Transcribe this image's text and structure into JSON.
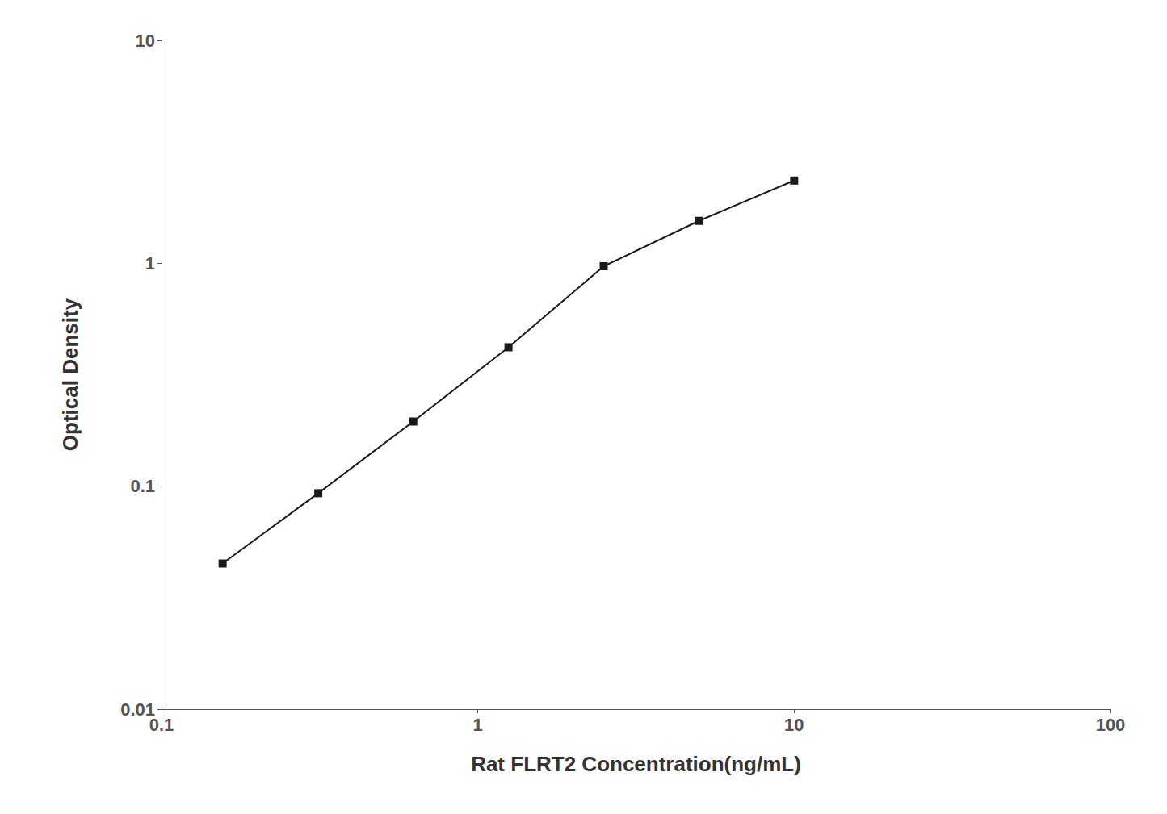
{
  "chart_data": {
    "type": "line",
    "x": [
      0.156,
      0.313,
      0.625,
      1.25,
      2.5,
      5.0,
      10.0
    ],
    "values": [
      0.045,
      0.093,
      0.195,
      0.42,
      0.97,
      1.55,
      2.35
    ],
    "xlabel": "Rat FLRT2 Concentration(ng/mL)",
    "ylabel": "Optical Density",
    "xlim": [
      0.1,
      100
    ],
    "ylim": [
      0.01,
      10
    ],
    "xticks": [
      0.1,
      1,
      10,
      100
    ],
    "yticks": [
      0.01,
      0.1,
      1,
      10
    ],
    "log": true,
    "grid": false,
    "color": "#1a1a1a",
    "marker": "square"
  }
}
